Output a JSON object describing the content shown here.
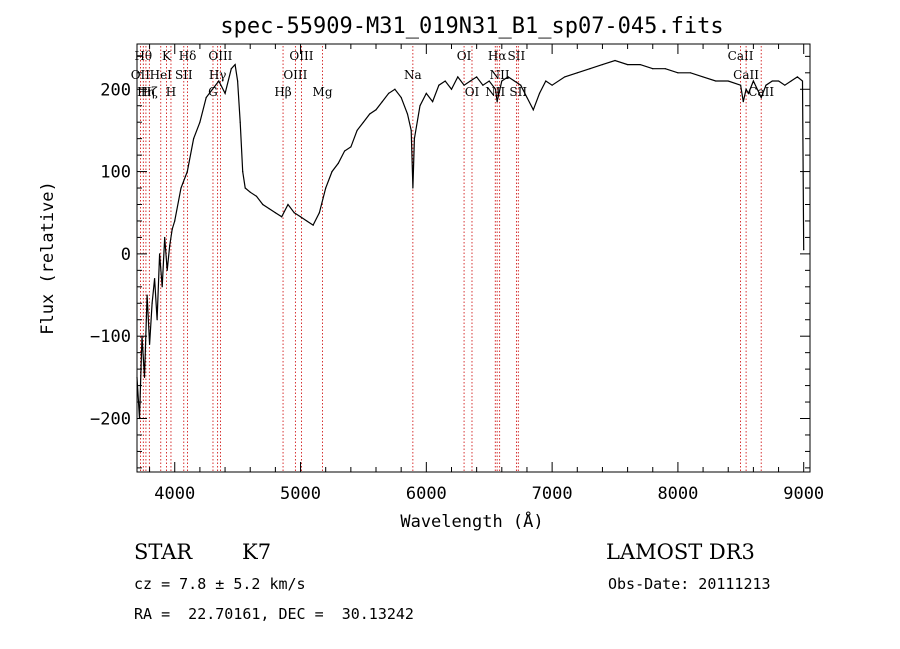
{
  "chart_data": {
    "type": "line",
    "title": "spec-55909-M31_019N31_B1_sp07-045.fits",
    "xlabel": "Wavelength (Å)",
    "ylabel": "Flux (relative)",
    "xlim": [
      3700,
      9050
    ],
    "ylim": [
      -265,
      255
    ],
    "xticks": [
      4000,
      5000,
      6000,
      7000,
      8000,
      9000
    ],
    "xtick_labels": [
      "4000",
      "5000",
      "6000",
      "7000",
      "8000",
      "9000"
    ],
    "yticks": [
      -200,
      -100,
      0,
      100,
      200
    ],
    "ytick_labels": [
      "−200",
      "−100",
      "0",
      "100",
      "200"
    ],
    "grid": false,
    "series": [
      {
        "x": [
          3700,
          3720,
          3740,
          3760,
          3780,
          3800,
          3820,
          3840,
          3860,
          3880,
          3900,
          3920,
          3940,
          3960,
          3980,
          4000,
          4050,
          4100,
          4150,
          4200,
          4250,
          4300,
          4350,
          4400,
          4450,
          4480,
          4500,
          4520,
          4540,
          4560,
          4600,
          4650,
          4700,
          4750,
          4800,
          4850,
          4900,
          4950,
          5000,
          5050,
          5100,
          5150,
          5200,
          5250,
          5300,
          5350,
          5400,
          5450,
          5500,
          5550,
          5600,
          5650,
          5700,
          5750,
          5800,
          5850,
          5880,
          5893,
          5905,
          5950,
          6000,
          6050,
          6100,
          6150,
          6200,
          6250,
          6300,
          6350,
          6400,
          6450,
          6500,
          6550,
          6563,
          6600,
          6650,
          6700,
          6750,
          6800,
          6850,
          6900,
          6950,
          7000,
          7100,
          7200,
          7300,
          7400,
          7500,
          7600,
          7700,
          7800,
          7900,
          8000,
          8100,
          8200,
          8300,
          8400,
          8498,
          8520,
          8542,
          8560,
          8600,
          8662,
          8700,
          8750,
          8800,
          8850,
          8900,
          8950,
          8990,
          9000
        ],
        "y": [
          -150,
          -200,
          -100,
          -150,
          -50,
          -110,
          -60,
          -30,
          -80,
          0,
          -40,
          20,
          -20,
          10,
          30,
          40,
          80,
          100,
          140,
          160,
          190,
          200,
          210,
          195,
          225,
          230,
          210,
          160,
          100,
          80,
          75,
          70,
          60,
          55,
          50,
          45,
          60,
          50,
          45,
          40,
          35,
          50,
          80,
          100,
          110,
          125,
          130,
          150,
          160,
          170,
          175,
          185,
          195,
          200,
          190,
          170,
          150,
          80,
          140,
          180,
          195,
          185,
          205,
          210,
          200,
          215,
          205,
          210,
          215,
          205,
          210,
          200,
          185,
          210,
          215,
          210,
          205,
          190,
          175,
          195,
          210,
          205,
          215,
          220,
          225,
          230,
          235,
          230,
          230,
          225,
          225,
          220,
          220,
          215,
          210,
          210,
          205,
          185,
          200,
          195,
          210,
          190,
          205,
          210,
          210,
          205,
          210,
          215,
          210,
          5
        ]
      }
    ],
    "lines": [
      {
        "w": 3750,
        "label": "Hθ",
        "row": 0
      },
      {
        "w": 3727,
        "label": "OII",
        "row": 1
      },
      {
        "w": 3771,
        "label": "Hη",
        "row": 2
      },
      {
        "w": 3798,
        "label": "Hζ",
        "row": 2
      },
      {
        "w": 3889,
        "label": "HeI",
        "row": 1
      },
      {
        "w": 3934,
        "label": "K",
        "row": 0
      },
      {
        "w": 3970,
        "label": "H",
        "row": 2
      },
      {
        "w": 4072,
        "label": "SII",
        "row": 1
      },
      {
        "w": 4102,
        "label": "Hδ",
        "row": 0
      },
      {
        "w": 4304,
        "label": "G",
        "row": 2
      },
      {
        "w": 4341,
        "label": "Hγ",
        "row": 1
      },
      {
        "w": 4363,
        "label": "OIII",
        "row": 0
      },
      {
        "w": 4861,
        "label": "Hβ",
        "row": 2
      },
      {
        "w": 4959,
        "label": "OIII",
        "row": 1
      },
      {
        "w": 5007,
        "label": "OIII",
        "row": 0
      },
      {
        "w": 5175,
        "label": "Mg",
        "row": 2
      },
      {
        "w": 5893,
        "label": "Na",
        "row": 1
      },
      {
        "w": 6300,
        "label": "OI",
        "row": 0
      },
      {
        "w": 6363,
        "label": "OI",
        "row": 2
      },
      {
        "w": 6548,
        "label": "NII",
        "row": 2
      },
      {
        "w": 6563,
        "label": "Hα",
        "row": 0
      },
      {
        "w": 6583,
        "label": "NII",
        "row": 1
      },
      {
        "w": 6716,
        "label": "SII",
        "row": 0
      },
      {
        "w": 6731,
        "label": "SII",
        "row": 2
      },
      {
        "w": 8498,
        "label": "CaII",
        "row": 0
      },
      {
        "w": 8542,
        "label": "CaII",
        "row": 1
      },
      {
        "w": 8662,
        "label": "CaII",
        "row": 2
      }
    ],
    "colors": {
      "spectrum": "#000000",
      "line_markers": "#cc0000"
    }
  },
  "info": {
    "class_label": "STAR",
    "subclass": "K7",
    "survey": "LAMOST DR3",
    "cz": "cz = 7.8 ± 5.2 km/s",
    "obs_date": "Obs-Date: 20111213",
    "coords": "RA =  22.70161, DEC =  30.13242"
  }
}
